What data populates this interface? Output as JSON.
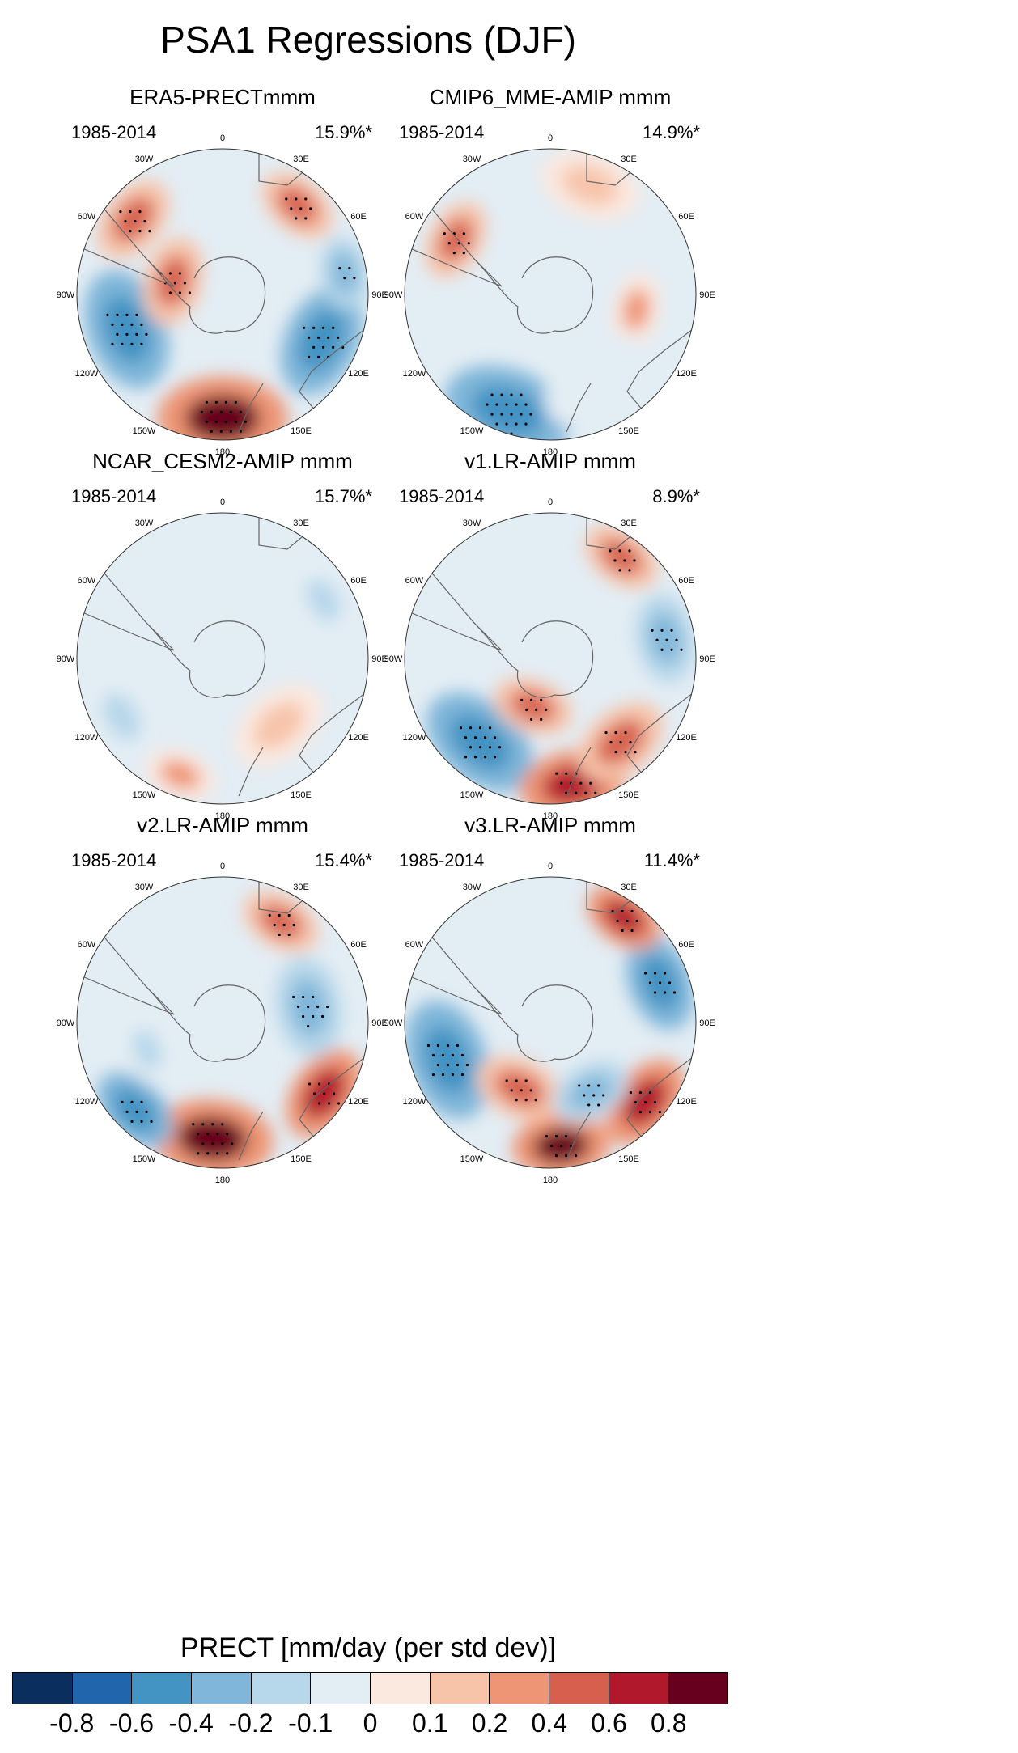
{
  "title": "PSA1 Regressions (DJF)",
  "colorbar": {
    "title": "PRECT [mm/day (per std dev)]",
    "levels": [
      "-0.8",
      "-0.6",
      "-0.4",
      "-0.2",
      "-0.1",
      "0",
      "0.1",
      "0.2",
      "0.4",
      "0.6",
      "0.8"
    ],
    "colors": [
      "#0a2f5e",
      "#2166ac",
      "#4393c3",
      "#7fb6d9",
      "#b7d7ea",
      "#e3edf4",
      "#fbe8df",
      "#f7c4aa",
      "#ee9575",
      "#d6604d",
      "#b2182b",
      "#67001f"
    ]
  },
  "longitude_labels": [
    "0",
    "30E",
    "60E",
    "90E",
    "120E",
    "150E",
    "180",
    "150W",
    "120W",
    "90W",
    "60W",
    "30W"
  ],
  "panels": [
    {
      "title": "ERA5-PRECTmmm",
      "period": "1985-2014",
      "variance": "15.9%*"
    },
    {
      "title": "CMIP6_MME-AMIP  mmm",
      "period": "1985-2014",
      "variance": "14.9%*"
    },
    {
      "title": "NCAR_CESM2-AMIP  mmm",
      "period": "1985-2014",
      "variance": "15.7%*"
    },
    {
      "title": "v1.LR-AMIP  mmm",
      "period": "1985-2014",
      "variance": "8.9%*"
    },
    {
      "title": "v2.LR-AMIP  mmm",
      "period": "1985-2014",
      "variance": "15.4%*"
    },
    {
      "title": "v3.LR-AMIP  mmm",
      "period": "1985-2014",
      "variance": "11.4%*"
    }
  ],
  "chart_data": {
    "type": "heatmap",
    "projection": "south polar stereographic",
    "title": "PSA1 Regressions (DJF)",
    "colorbar_label": "PRECT [mm/day (per std dev)]",
    "levels": [
      -0.8,
      -0.6,
      -0.4,
      -0.2,
      -0.1,
      0,
      0.1,
      0.2,
      0.4,
      0.6,
      0.8
    ],
    "subplots": [
      {
        "title": "ERA5-PRECTmmm",
        "variance_explained_pct": 15.9,
        "features": [
          {
            "lon": 180,
            "r": 0.85,
            "value": 0.8,
            "size": 0.32
          },
          {
            "lon": 115,
            "r": 0.75,
            "value": -0.6,
            "size": 0.28
          },
          {
            "lon": 250,
            "r": 0.7,
            "value": -0.6,
            "size": 0.3
          },
          {
            "lon": 285,
            "r": 0.35,
            "value": 0.4,
            "size": 0.22
          },
          {
            "lon": 40,
            "r": 0.8,
            "value": 0.4,
            "size": 0.2
          },
          {
            "lon": 310,
            "r": 0.8,
            "value": 0.4,
            "size": 0.22
          },
          {
            "lon": 80,
            "r": 0.85,
            "value": -0.4,
            "size": 0.18
          }
        ]
      },
      {
        "title": "CMIP6_MME-AMIP  mmm",
        "variance_explained_pct": 14.9,
        "features": [
          {
            "lon": 200,
            "r": 0.85,
            "value": -0.6,
            "size": 0.32
          },
          {
            "lon": 300,
            "r": 0.75,
            "value": 0.4,
            "size": 0.2
          },
          {
            "lon": 100,
            "r": 0.6,
            "value": 0.2,
            "size": 0.18
          },
          {
            "lon": 150,
            "r": 0.7,
            "value": -0.1,
            "size": 0.3
          },
          {
            "lon": 20,
            "r": 0.8,
            "value": 0.1,
            "size": 0.25
          }
        ]
      },
      {
        "title": "NCAR_CESM2-AMIP  mmm",
        "variance_explained_pct": 15.7,
        "features": [
          {
            "lon": 200,
            "r": 0.85,
            "value": 0.2,
            "size": 0.18
          },
          {
            "lon": 240,
            "r": 0.8,
            "value": -0.2,
            "size": 0.22
          },
          {
            "lon": 60,
            "r": 0.8,
            "value": -0.2,
            "size": 0.2
          },
          {
            "lon": 140,
            "r": 0.6,
            "value": 0.1,
            "size": 0.25
          }
        ]
      },
      {
        "title": "v1.LR-AMIP  mmm",
        "variance_explained_pct": 8.9,
        "features": [
          {
            "lon": 220,
            "r": 0.75,
            "value": -0.6,
            "size": 0.3
          },
          {
            "lon": 170,
            "r": 0.88,
            "value": 0.6,
            "size": 0.26
          },
          {
            "lon": 140,
            "r": 0.75,
            "value": 0.4,
            "size": 0.24
          },
          {
            "lon": 200,
            "r": 0.35,
            "value": 0.4,
            "size": 0.2
          },
          {
            "lon": 80,
            "r": 0.8,
            "value": -0.4,
            "size": 0.22
          },
          {
            "lon": 35,
            "r": 0.85,
            "value": 0.4,
            "size": 0.2
          }
        ]
      },
      {
        "title": "v2.LR-AMIP  mmm",
        "variance_explained_pct": 15.4,
        "features": [
          {
            "lon": 185,
            "r": 0.8,
            "value": 0.8,
            "size": 0.3
          },
          {
            "lon": 125,
            "r": 0.85,
            "value": 0.6,
            "size": 0.24
          },
          {
            "lon": 80,
            "r": 0.6,
            "value": -0.4,
            "size": 0.25
          },
          {
            "lon": 225,
            "r": 0.85,
            "value": -0.6,
            "size": 0.22
          },
          {
            "lon": 30,
            "r": 0.8,
            "value": 0.4,
            "size": 0.2
          },
          {
            "lon": 250,
            "r": 0.55,
            "value": -0.2,
            "size": 0.18
          }
        ]
      },
      {
        "title": "v3.LR-AMIP  mmm",
        "variance_explained_pct": 11.4,
        "features": [
          {
            "lon": 250,
            "r": 0.75,
            "value": -0.6,
            "size": 0.3
          },
          {
            "lon": 175,
            "r": 0.85,
            "value": 0.8,
            "size": 0.24
          },
          {
            "lon": 205,
            "r": 0.5,
            "value": 0.4,
            "size": 0.22
          },
          {
            "lon": 70,
            "r": 0.8,
            "value": -0.6,
            "size": 0.24
          },
          {
            "lon": 130,
            "r": 0.85,
            "value": 0.6,
            "size": 0.24
          },
          {
            "lon": 35,
            "r": 0.88,
            "value": 0.6,
            "size": 0.2
          },
          {
            "lon": 150,
            "r": 0.55,
            "value": -0.4,
            "size": 0.2
          }
        ]
      }
    ]
  }
}
